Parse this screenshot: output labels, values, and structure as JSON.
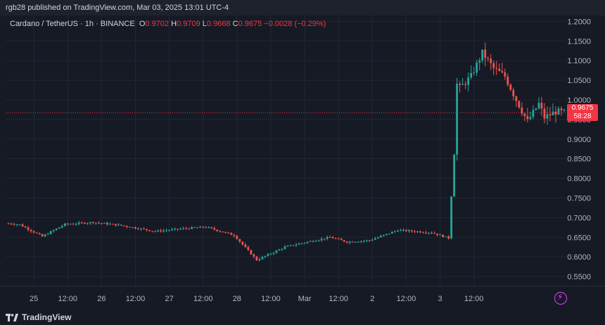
{
  "header": {
    "published": "rgb28 published on TradingView.com, Mar 03, 2025 13:01 UTC-4"
  },
  "symbol": {
    "name": "Cardano / TetherUS · 1h · BINANCE",
    "o_label": "O",
    "o_value": "0.9702",
    "h_label": "H",
    "h_value": "0.9709",
    "l_label": "L",
    "l_value": "0.9668",
    "c_label": "C",
    "c_value": "0.9675",
    "change": "−0.0028 (−0.29%)"
  },
  "price_tag": {
    "price": "0.9675",
    "countdown": "58:28"
  },
  "footer": {
    "brand": "TradingView"
  },
  "colors": {
    "up": "#26a69a",
    "down": "#ef5350",
    "grid": "#232733",
    "bg": "#161a25",
    "axis_text": "#b2b5be",
    "current": "#f23645"
  },
  "chart_data": {
    "type": "candlestick",
    "title": "Cardano / TetherUS · 1h · BINANCE",
    "x_ticks": [
      "25",
      "12:00",
      "26",
      "12:00",
      "27",
      "12:00",
      "28",
      "12:00",
      "Mar",
      "12:00",
      "2",
      "12:00",
      "3",
      "12:00"
    ],
    "y_ticks": [
      "1.2000",
      "1.1500",
      "1.1000",
      "1.0500",
      "1.0000",
      "0.9500",
      "0.9000",
      "0.8500",
      "0.8000",
      "0.7500",
      "0.7000",
      "0.6500",
      "0.6000",
      "0.5500"
    ],
    "ylim": [
      0.525,
      1.215
    ],
    "current_price": 0.9675,
    "keypoints_hours": [
      0,
      4,
      12,
      20,
      30,
      40,
      52,
      62,
      70,
      80,
      88,
      98,
      104,
      114,
      120,
      128,
      138,
      150,
      156,
      158,
      159,
      160,
      164,
      168,
      172,
      176,
      180,
      184,
      188,
      190,
      194,
      197
    ],
    "keypoints_close": [
      0.685,
      0.682,
      0.652,
      0.683,
      0.688,
      0.68,
      0.665,
      0.672,
      0.676,
      0.655,
      0.592,
      0.625,
      0.635,
      0.65,
      0.638,
      0.642,
      0.668,
      0.662,
      0.648,
      0.862,
      1.04,
      1.03,
      1.06,
      1.12,
      1.08,
      1.06,
      1.0,
      0.945,
      0.99,
      0.955,
      0.97,
      0.9675
    ],
    "grid": true
  }
}
